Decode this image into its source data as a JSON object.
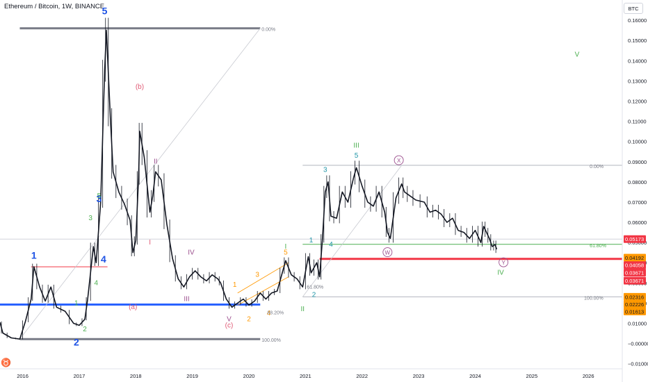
{
  "header": {
    "title": "Ethereum / Bitcoin, 1W, BINANCE",
    "currency_box": "BTC"
  },
  "chart_data": {
    "type": "candlestick",
    "title": "Ethereum / Bitcoin, 1W, BINANCE",
    "xlabel": "",
    "ylabel": "",
    "xlim": [
      2015.6,
      2026.6
    ],
    "ylim": [
      -0.0125,
      0.17
    ],
    "x_ticks": [
      "2016",
      "2017",
      "2018",
      "2019",
      "2020",
      "2021",
      "2022",
      "2023",
      "2024",
      "2025",
      "2026"
    ],
    "y_ticks": [
      "0.16000",
      "0.15000",
      "0.14000",
      "0.13000",
      "0.12000",
      "0.11000",
      "0.10000",
      "0.09000",
      "0.08000",
      "0.07000",
      "0.06000",
      "0.05000",
      "0.04000",
      "0.03000",
      "0.02000",
      "0.01000",
      "−0.00000",
      "−0.01000"
    ],
    "y_tick_values": [
      0.16,
      0.15,
      0.14,
      0.13,
      0.12,
      0.11,
      0.1,
      0.09,
      0.08,
      0.07,
      0.06,
      0.05,
      0.04,
      0.03,
      0.02,
      0.01,
      0,
      -0.01
    ],
    "price_path": [
      [
        2015.6,
        0.0105
      ],
      [
        2015.65,
        0.0052
      ],
      [
        2015.8,
        0.0028
      ],
      [
        2015.95,
        0.0022
      ],
      [
        2016.05,
        0.011
      ],
      [
        2016.15,
        0.022
      ],
      [
        2016.2,
        0.038
      ],
      [
        2016.3,
        0.028
      ],
      [
        2016.4,
        0.021
      ],
      [
        2016.5,
        0.028
      ],
      [
        2016.6,
        0.018
      ],
      [
        2016.75,
        0.016
      ],
      [
        2016.9,
        0.01
      ],
      [
        2017.0,
        0.009
      ],
      [
        2017.1,
        0.012
      ],
      [
        2017.15,
        0.022
      ],
      [
        2017.25,
        0.048
      ],
      [
        2017.3,
        0.04
      ],
      [
        2017.38,
        0.07
      ],
      [
        2017.45,
        0.135
      ],
      [
        2017.48,
        0.155
      ],
      [
        2017.55,
        0.112
      ],
      [
        2017.6,
        0.085
      ],
      [
        2017.7,
        0.075
      ],
      [
        2017.8,
        0.069
      ],
      [
        2017.9,
        0.061
      ],
      [
        2017.95,
        0.045
      ],
      [
        2018.0,
        0.051
      ],
      [
        2018.05,
        0.082
      ],
      [
        2018.07,
        0.105
      ],
      [
        2018.15,
        0.092
      ],
      [
        2018.25,
        0.065
      ],
      [
        2018.3,
        0.073
      ],
      [
        2018.35,
        0.085
      ],
      [
        2018.45,
        0.081
      ],
      [
        2018.55,
        0.059
      ],
      [
        2018.65,
        0.042
      ],
      [
        2018.75,
        0.032
      ],
      [
        2018.85,
        0.028
      ],
      [
        2018.95,
        0.033
      ],
      [
        2019.05,
        0.036
      ],
      [
        2019.15,
        0.033
      ],
      [
        2019.25,
        0.031
      ],
      [
        2019.35,
        0.034
      ],
      [
        2019.45,
        0.032
      ],
      [
        2019.5,
        0.03
      ],
      [
        2019.6,
        0.022
      ],
      [
        2019.7,
        0.018
      ],
      [
        2019.8,
        0.02
      ],
      [
        2019.9,
        0.022
      ],
      [
        2020.0,
        0.019
      ],
      [
        2020.1,
        0.021
      ],
      [
        2020.2,
        0.025
      ],
      [
        2020.3,
        0.022
      ],
      [
        2020.4,
        0.025
      ],
      [
        2020.5,
        0.026
      ],
      [
        2020.6,
        0.036
      ],
      [
        2020.65,
        0.041
      ],
      [
        2020.75,
        0.034
      ],
      [
        2020.85,
        0.032
      ],
      [
        2020.95,
        0.028
      ],
      [
        2021.05,
        0.043
      ],
      [
        2021.1,
        0.035
      ],
      [
        2021.2,
        0.04
      ],
      [
        2021.25,
        0.033
      ],
      [
        2021.3,
        0.052
      ],
      [
        2021.35,
        0.075
      ],
      [
        2021.4,
        0.08
      ],
      [
        2021.45,
        0.063
      ],
      [
        2021.55,
        0.062
      ],
      [
        2021.65,
        0.075
      ],
      [
        2021.75,
        0.07
      ],
      [
        2021.85,
        0.082
      ],
      [
        2021.9,
        0.087
      ],
      [
        2022.0,
        0.078
      ],
      [
        2022.1,
        0.07
      ],
      [
        2022.2,
        0.068
      ],
      [
        2022.3,
        0.075
      ],
      [
        2022.4,
        0.065
      ],
      [
        2022.45,
        0.055
      ],
      [
        2022.5,
        0.052
      ],
      [
        2022.6,
        0.072
      ],
      [
        2022.7,
        0.079
      ],
      [
        2022.75,
        0.075
      ],
      [
        2022.85,
        0.073
      ],
      [
        2022.95,
        0.071
      ],
      [
        2023.1,
        0.07
      ],
      [
        2023.2,
        0.065
      ],
      [
        2023.3,
        0.066
      ],
      [
        2023.4,
        0.064
      ],
      [
        2023.5,
        0.06
      ],
      [
        2023.6,
        0.062
      ],
      [
        2023.7,
        0.056
      ],
      [
        2023.8,
        0.055
      ],
      [
        2023.9,
        0.052
      ],
      [
        2024.0,
        0.056
      ],
      [
        2024.1,
        0.05
      ],
      [
        2024.15,
        0.058
      ],
      [
        2024.2,
        0.055
      ],
      [
        2024.25,
        0.052
      ],
      [
        2024.3,
        0.048
      ],
      [
        2024.35,
        0.049
      ],
      [
        2024.38,
        0.0467
      ]
    ],
    "horizontal_levels": [
      {
        "name": "fib-top",
        "x0": 2015.95,
        "x1": 2020.2,
        "y": 0.156,
        "color": "#787b86"
      },
      {
        "name": "fib-bottom",
        "x0": 2015.95,
        "x1": 2020.2,
        "y": 0.0022,
        "color": "#787b86"
      },
      {
        "name": "wave1-top",
        "x0": 2016.15,
        "x1": 2017.5,
        "y": 0.038,
        "color": "#f23645"
      },
      {
        "name": "support-blue",
        "x0": 2015.6,
        "x1": 2020.2,
        "y": 0.0193,
        "color": "#2962ff"
      },
      {
        "name": "fib2-top",
        "x0": 2020.95,
        "x1": 2026.6,
        "y": 0.0882,
        "color": "#b2b5be"
      },
      {
        "name": "fib2-618",
        "x0": 2020.95,
        "x1": 2026.6,
        "y": 0.0491,
        "color": "#4caf50"
      },
      {
        "name": "fib2-bottom",
        "x0": 2020.95,
        "x1": 2026.6,
        "y": 0.0231,
        "color": "#b2b5be"
      },
      {
        "name": "resistance-red",
        "x0": 2021.25,
        "x1": 2026.6,
        "y": 0.0419,
        "color": "#f23645"
      },
      {
        "name": "last-price",
        "x0": 2015.6,
        "x1": 2026.6,
        "y": 0.0517,
        "color": "#d1d4dc"
      }
    ],
    "fib_labels": [
      {
        "text": "0.00%",
        "x": 2020.2,
        "y": 0.156
      },
      {
        "text": "100.00%",
        "x": 2020.2,
        "y": 0.0022
      },
      {
        "text": "0.00%",
        "x": 2026.0,
        "y": 0.0882
      },
      {
        "text": "61.80%",
        "x": 2026.0,
        "y": 0.0491
      },
      {
        "text": "100.00%",
        "x": 2025.9,
        "y": 0.0231
      },
      {
        "text": "61.80%",
        "x": 2021.0,
        "y": 0.0285
      },
      {
        "text": "88.20%",
        "x": 2020.3,
        "y": 0.0158
      }
    ],
    "wave_labels": [
      {
        "text": "5",
        "x": 2017.45,
        "y": 0.163,
        "color": "#1e53e5"
      },
      {
        "text": "1",
        "x": 2016.2,
        "y": 0.042,
        "color": "#1e53e5"
      },
      {
        "text": "2",
        "x": 2016.95,
        "y": -0.001,
        "color": "#1e53e5"
      },
      {
        "text": "3",
        "x": 2017.35,
        "y": 0.07,
        "color": "#1e53e5"
      },
      {
        "text": "4",
        "x": 2017.43,
        "y": 0.04,
        "color": "#1e53e5"
      },
      {
        "text": "1",
        "x": 2016.95,
        "y": 0.019,
        "color": "#4caf50"
      },
      {
        "text": "2",
        "x": 2017.1,
        "y": 0.006,
        "color": "#4caf50"
      },
      {
        "text": "3",
        "x": 2017.2,
        "y": 0.061,
        "color": "#4caf50"
      },
      {
        "text": "4",
        "x": 2017.3,
        "y": 0.029,
        "color": "#4caf50"
      },
      {
        "text": "5",
        "x": 2017.35,
        "y": 0.072,
        "color": "#4caf50"
      },
      {
        "text": "(b)",
        "x": 2018.07,
        "y": 0.126,
        "color": "#e05a75"
      },
      {
        "text": "(a)",
        "x": 2017.95,
        "y": 0.017,
        "color": "#e05a75"
      },
      {
        "text": "(c)",
        "x": 2019.65,
        "y": 0.008,
        "color": "#e05a75"
      },
      {
        "text": "I",
        "x": 2018.25,
        "y": 0.049,
        "color": "#e05a75"
      },
      {
        "text": "II",
        "x": 2018.35,
        "y": 0.089,
        "color": "#9c4f8e"
      },
      {
        "text": "III",
        "x": 2018.9,
        "y": 0.021,
        "color": "#9c4f8e"
      },
      {
        "text": "IV",
        "x": 2018.98,
        "y": 0.044,
        "color": "#9c4f8e"
      },
      {
        "text": "V",
        "x": 2019.65,
        "y": 0.011,
        "color": "#9c4f8e"
      },
      {
        "text": "1",
        "x": 2019.75,
        "y": 0.028,
        "color": "#ff9800"
      },
      {
        "text": "2",
        "x": 2020.0,
        "y": 0.011,
        "color": "#ff9800"
      },
      {
        "text": "3",
        "x": 2020.15,
        "y": 0.033,
        "color": "#ff9800"
      },
      {
        "text": "4",
        "x": 2020.35,
        "y": 0.014,
        "color": "#ff9800"
      },
      {
        "text": "5",
        "x": 2020.65,
        "y": 0.044,
        "color": "#ff9800"
      },
      {
        "text": "I",
        "x": 2020.65,
        "y": 0.047,
        "color": "#4caf50"
      },
      {
        "text": "II",
        "x": 2020.95,
        "y": 0.016,
        "color": "#4caf50"
      },
      {
        "text": "III",
        "x": 2021.9,
        "y": 0.097,
        "color": "#4caf50"
      },
      {
        "text": "IV",
        "x": 2024.45,
        "y": 0.034,
        "color": "#4caf50"
      },
      {
        "text": "V",
        "x": 2025.8,
        "y": 0.142,
        "color": "#4caf50"
      },
      {
        "text": "1",
        "x": 2021.1,
        "y": 0.05,
        "color": "#2196a8"
      },
      {
        "text": "2",
        "x": 2021.15,
        "y": 0.023,
        "color": "#2196a8"
      },
      {
        "text": "3",
        "x": 2021.35,
        "y": 0.085,
        "color": "#2196a8"
      },
      {
        "text": "4",
        "x": 2021.45,
        "y": 0.048,
        "color": "#2196a8"
      },
      {
        "text": "5",
        "x": 2021.9,
        "y": 0.092,
        "color": "#2196a8"
      },
      {
        "text": "X",
        "x": 2022.65,
        "y": 0.0895,
        "color": "#9c4f8e",
        "circled": true
      },
      {
        "text": "W",
        "x": 2022.45,
        "y": 0.044,
        "color": "#9c4f8e",
        "circled": true
      },
      {
        "text": "Y",
        "x": 2024.5,
        "y": 0.039,
        "color": "#9c4f8e",
        "circled": true
      }
    ],
    "price_tags": [
      {
        "text": "0.05173",
        "y": 0.0517,
        "bg": "#f23645",
        "fg": "#ffffff"
      },
      {
        "text": "0.04192",
        "y": 0.0425,
        "bg": "#ff9800",
        "fg": "#131722"
      },
      {
        "text": "0.04058",
        "y": 0.0388,
        "bg": "#f23645",
        "fg": "#ffffff"
      },
      {
        "text": "0.03671",
        "y": 0.0351,
        "bg": "#f23645",
        "fg": "#ffffff"
      },
      {
        "text": "0.03671",
        "y": 0.0311,
        "bg": "#f23645",
        "fg": "#ffffff"
      },
      {
        "text": "0.02316",
        "y": 0.0231,
        "bg": "#ff9800",
        "fg": "#131722"
      },
      {
        "text": "0.02226",
        "y": 0.0195,
        "bg": "#ff9800",
        "fg": "#131722"
      },
      {
        "text": "0.01613",
        "y": 0.0159,
        "bg": "#ff9800",
        "fg": "#131722"
      }
    ]
  }
}
